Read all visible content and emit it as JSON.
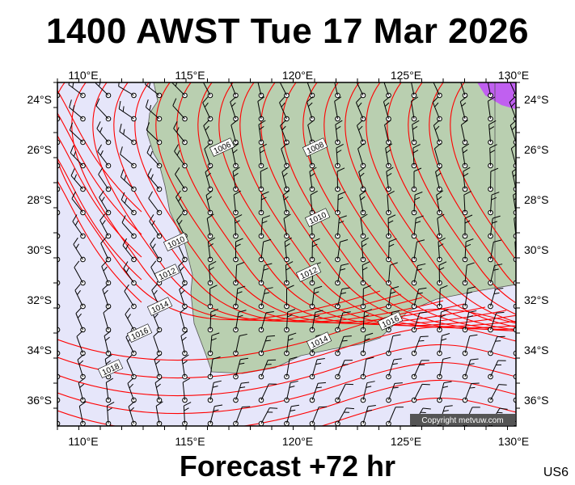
{
  "title": "1400 AWST Tue 17 Mar 2026",
  "footer": "Forecast +72 hr",
  "code": "US6",
  "copyright": "Copyright metvuw.com",
  "lon_labels": [
    "110°E",
    "115°E",
    "120°E",
    "125°E",
    "130°E"
  ],
  "lat_labels": [
    "24°S",
    "26°S",
    "28°S",
    "30°S",
    "32°S",
    "34°S",
    "36°S"
  ],
  "isobar_labels": [
    "1006",
    "1010",
    "1012",
    "1014",
    "1016",
    "1018",
    "1008",
    "1010",
    "1012",
    "1014",
    "1016"
  ],
  "colors": {
    "ocean": "#e6e6fa",
    "land": "#b9cfb0",
    "isobar": "#ff0000",
    "barb": "#000000",
    "frame": "#000000"
  }
}
